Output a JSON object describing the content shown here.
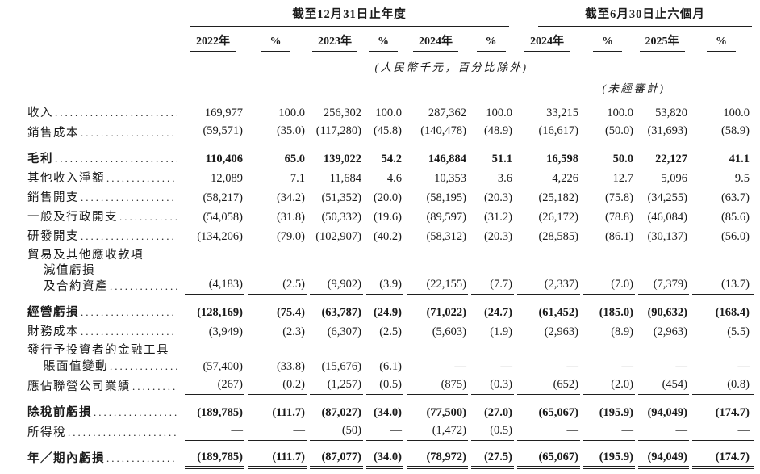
{
  "table": {
    "header": {
      "groups": [
        {
          "label": "截至12月31日止年度"
        },
        {
          "label": "截至6月30日止六個月"
        }
      ],
      "columns": [
        "2022年",
        "%",
        "2023年",
        "%",
        "2024年",
        "%",
        "2024年",
        "%",
        "2025年",
        "%"
      ],
      "currency_note": "(人民幣千元，百分比除外)",
      "unaudited_note": "(未經審計)"
    },
    "rows": [
      {
        "id": "revenue",
        "label_lines": [
          {
            "text": "收入",
            "indent": 0
          }
        ],
        "bold": false,
        "rule_below": false,
        "top_space": false,
        "double_rule": false,
        "values": [
          "169,977",
          "100.0",
          "256,302",
          "100.0",
          "287,362",
          "100.0",
          "33,215",
          "100.0",
          "53,820",
          "100.0"
        ]
      },
      {
        "id": "cost-of-sales",
        "label_lines": [
          {
            "text": "銷售成本",
            "indent": 0
          }
        ],
        "bold": false,
        "rule_below": true,
        "top_space": false,
        "double_rule": false,
        "values": [
          "(59,571)",
          "(35.0)",
          "(117,280)",
          "(45.8)",
          "(140,478)",
          "(48.9)",
          "(16,617)",
          "(50.0)",
          "(31,693)",
          "(58.9)"
        ]
      },
      {
        "id": "gross-profit",
        "label_lines": [
          {
            "text": "毛利",
            "indent": 0
          }
        ],
        "bold": true,
        "rule_below": false,
        "top_space": true,
        "double_rule": false,
        "values": [
          "110,406",
          "65.0",
          "139,022",
          "54.2",
          "146,884",
          "51.1",
          "16,598",
          "50.0",
          "22,127",
          "41.1"
        ]
      },
      {
        "id": "other-income-net",
        "label_lines": [
          {
            "text": "其他收入淨額",
            "indent": 0
          }
        ],
        "bold": false,
        "rule_below": false,
        "top_space": false,
        "double_rule": false,
        "values": [
          "12,089",
          "7.1",
          "11,684",
          "4.6",
          "10,353",
          "3.6",
          "4,226",
          "12.7",
          "5,096",
          "9.5"
        ]
      },
      {
        "id": "selling-expenses",
        "label_lines": [
          {
            "text": "銷售開支",
            "indent": 0
          }
        ],
        "bold": false,
        "rule_below": false,
        "top_space": false,
        "double_rule": false,
        "values": [
          "(58,217)",
          "(34.2)",
          "(51,352)",
          "(20.0)",
          "(58,195)",
          "(20.3)",
          "(25,182)",
          "(75.8)",
          "(34,255)",
          "(63.7)"
        ]
      },
      {
        "id": "general-admin-expenses",
        "label_lines": [
          {
            "text": "一般及行政開支",
            "indent": 0
          }
        ],
        "bold": false,
        "rule_below": false,
        "top_space": false,
        "double_rule": false,
        "values": [
          "(54,058)",
          "(31.8)",
          "(50,332)",
          "(19.6)",
          "(89,597)",
          "(31.2)",
          "(26,172)",
          "(78.8)",
          "(46,084)",
          "(85.6)"
        ]
      },
      {
        "id": "rd-expenses",
        "label_lines": [
          {
            "text": "研發開支",
            "indent": 0
          }
        ],
        "bold": false,
        "rule_below": false,
        "top_space": false,
        "double_rule": false,
        "values": [
          "(134,206)",
          "(79.0)",
          "(102,907)",
          "(40.2)",
          "(58,312)",
          "(20.3)",
          "(28,585)",
          "(86.1)",
          "(30,137)",
          "(56.0)"
        ]
      },
      {
        "id": "impairment-losses",
        "label_lines": [
          {
            "text": "貿易及其他應收款項",
            "indent": 0
          },
          {
            "text": "減值虧損",
            "indent": 1
          },
          {
            "text": "及合約資產",
            "indent": 1
          }
        ],
        "bold": false,
        "rule_below": true,
        "top_space": false,
        "double_rule": false,
        "values": [
          "(4,183)",
          "(2.5)",
          "(9,902)",
          "(3.9)",
          "(22,155)",
          "(7.7)",
          "(2,337)",
          "(7.0)",
          "(7,379)",
          "(13.7)"
        ]
      },
      {
        "id": "operating-loss",
        "label_lines": [
          {
            "text": "經營虧損",
            "indent": 0
          }
        ],
        "bold": true,
        "rule_below": false,
        "top_space": true,
        "double_rule": false,
        "values": [
          "(128,169)",
          "(75.4)",
          "(63,787)",
          "(24.9)",
          "(71,022)",
          "(24.7)",
          "(61,452)",
          "(185.0)",
          "(90,632)",
          "(168.4)"
        ]
      },
      {
        "id": "finance-costs",
        "label_lines": [
          {
            "text": "財務成本",
            "indent": 0
          }
        ],
        "bold": false,
        "rule_below": false,
        "top_space": false,
        "double_rule": false,
        "values": [
          "(3,949)",
          "(2.3)",
          "(6,307)",
          "(2.5)",
          "(5,603)",
          "(1.9)",
          "(2,963)",
          "(8.9)",
          "(2,963)",
          "(5.5)"
        ]
      },
      {
        "id": "financial-instruments-change",
        "label_lines": [
          {
            "text": "發行予投資者的金融工具",
            "indent": 0
          },
          {
            "text": "賬面值變動",
            "indent": 1
          }
        ],
        "bold": false,
        "rule_below": false,
        "top_space": false,
        "double_rule": false,
        "values": [
          "(57,400)",
          "(33.8)",
          "(15,676)",
          "(6.1)",
          "—",
          "—",
          "—",
          "—",
          "—",
          "—"
        ]
      },
      {
        "id": "share-of-associates",
        "label_lines": [
          {
            "text": "應佔聯營公司業績",
            "indent": 0
          }
        ],
        "bold": false,
        "rule_below": true,
        "top_space": false,
        "double_rule": false,
        "values": [
          "(267)",
          "(0.2)",
          "(1,257)",
          "(0.5)",
          "(875)",
          "(0.3)",
          "(652)",
          "(2.0)",
          "(454)",
          "(0.8)"
        ]
      },
      {
        "id": "loss-before-tax",
        "label_lines": [
          {
            "text": "除稅前虧損",
            "indent": 0
          }
        ],
        "bold": true,
        "rule_below": false,
        "top_space": true,
        "double_rule": false,
        "values": [
          "(189,785)",
          "(111.7)",
          "(87,027)",
          "(34.0)",
          "(77,500)",
          "(27.0)",
          "(65,067)",
          "(195.9)",
          "(94,049)",
          "(174.7)"
        ]
      },
      {
        "id": "income-tax",
        "label_lines": [
          {
            "text": "所得稅",
            "indent": 0
          }
        ],
        "bold": false,
        "rule_below": true,
        "top_space": false,
        "double_rule": false,
        "values": [
          "—",
          "—",
          "(50)",
          "—",
          "(1,472)",
          "(0.5)",
          "—",
          "—",
          "—",
          "—"
        ]
      },
      {
        "id": "loss-for-period",
        "label_lines": [
          {
            "text": "年／期內虧損",
            "indent": 0
          }
        ],
        "bold": true,
        "rule_below": false,
        "top_space": true,
        "double_rule": true,
        "values": [
          "(189,785)",
          "(111.7)",
          "(87,077)",
          "(34.0)",
          "(78,972)",
          "(27.5)",
          "(65,067)",
          "(195.9)",
          "(94,049)",
          "(174.7)"
        ]
      }
    ]
  }
}
